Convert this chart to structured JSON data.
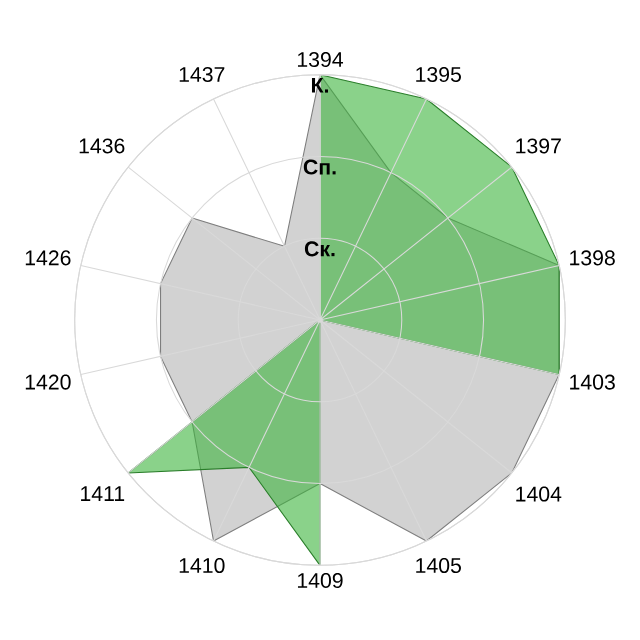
{
  "chart_data": {
    "type": "radar",
    "categories": [
      "1394",
      "1395",
      "1397",
      "1398",
      "1403",
      "1404",
      "1405",
      "1409",
      "1410",
      "1411",
      "1420",
      "1426",
      "1436",
      "1437"
    ],
    "series": [
      {
        "color": "#b4b4b4",
        "values": [
          3,
          2,
          2,
          3,
          3,
          3,
          3,
          2,
          3,
          2,
          2,
          2,
          2,
          1
        ]
      },
      {
        "color": "#3cb43c",
        "values": [
          3,
          3,
          3,
          3,
          3,
          0,
          0,
          3,
          2,
          3,
          0,
          0,
          0,
          0
        ]
      }
    ],
    "ylim": [
      0,
      3
    ],
    "yticks": [
      {
        "value": 1,
        "label": "Ск."
      },
      {
        "value": 2,
        "label": "Сп."
      },
      {
        "value": 3,
        "label": "К."
      }
    ],
    "grid": true
  }
}
